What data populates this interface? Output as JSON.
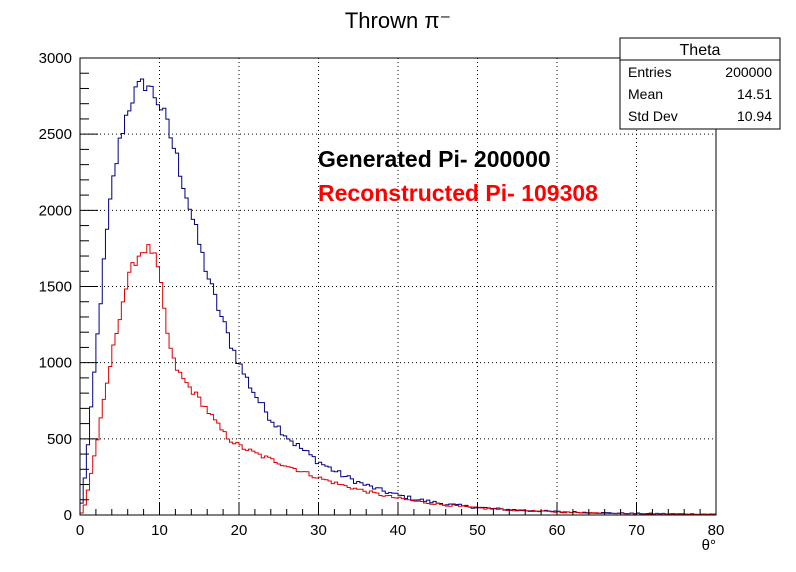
{
  "chart_data": {
    "type": "histogram",
    "title": "Thrown π⁻",
    "xlabel": "θ°",
    "ylabel": "",
    "xlim": [
      0,
      80
    ],
    "ylim": [
      0,
      3000
    ],
    "bin_width": 0.4,
    "x_ticks": [
      "0",
      "10",
      "20",
      "30",
      "40",
      "50",
      "60",
      "70",
      "80"
    ],
    "y_ticks": [
      "0",
      "500",
      "1000",
      "1500",
      "2000",
      "2500",
      "3000"
    ],
    "grid": true,
    "stats_box": {
      "title": "Theta",
      "rows": [
        {
          "label": "Entries",
          "value": "200000"
        },
        {
          "label": "Mean",
          "value": "14.51"
        },
        {
          "label": "Std Dev",
          "value": "10.94"
        }
      ]
    },
    "annotations": [
      {
        "text": "Generated Pi- 200000",
        "color": "#000000"
      },
      {
        "text": "Reconstructed Pi- 109308",
        "color": "#ff0000"
      }
    ],
    "series": [
      {
        "color": "#000080",
        "shape_points": [
          [
            0,
            0
          ],
          [
            0.4,
            150
          ],
          [
            0.8,
            350
          ],
          [
            1.2,
            560
          ],
          [
            1.6,
            800
          ],
          [
            2,
            1050
          ],
          [
            2.4,
            1300
          ],
          [
            2.8,
            1530
          ],
          [
            3.2,
            1760
          ],
          [
            3.6,
            1950
          ],
          [
            4,
            2130
          ],
          [
            4.4,
            2270
          ],
          [
            4.8,
            2380
          ],
          [
            5.2,
            2500
          ],
          [
            5.6,
            2580
          ],
          [
            6,
            2650
          ],
          [
            6.4,
            2720
          ],
          [
            6.8,
            2760
          ],
          [
            7.2,
            2790
          ],
          [
            7.6,
            2810
          ],
          [
            8,
            2830
          ],
          [
            8.4,
            2840
          ],
          [
            8.8,
            2800
          ],
          [
            9.2,
            2770
          ],
          [
            9.6,
            2740
          ],
          [
            10,
            2700
          ],
          [
            10.4,
            2650
          ],
          [
            10.8,
            2590
          ],
          [
            11.2,
            2520
          ],
          [
            11.6,
            2450
          ],
          [
            12,
            2380
          ],
          [
            12.4,
            2300
          ],
          [
            12.8,
            2220
          ],
          [
            13.2,
            2140
          ],
          [
            13.6,
            2060
          ],
          [
            14,
            1980
          ],
          [
            14.4,
            1900
          ],
          [
            14.8,
            1820
          ],
          [
            15.2,
            1740
          ],
          [
            15.6,
            1660
          ],
          [
            16,
            1590
          ],
          [
            16.4,
            1520
          ],
          [
            16.8,
            1450
          ],
          [
            17.2,
            1390
          ],
          [
            17.6,
            1330
          ],
          [
            18,
            1270
          ],
          [
            18.4,
            1210
          ],
          [
            18.8,
            1150
          ],
          [
            19.2,
            1100
          ],
          [
            19.6,
            1050
          ],
          [
            20,
            1000
          ],
          [
            20.4,
            955
          ],
          [
            20.8,
            910
          ],
          [
            21.2,
            870
          ],
          [
            21.6,
            830
          ],
          [
            22,
            795
          ],
          [
            22.4,
            760
          ],
          [
            22.8,
            725
          ],
          [
            23.2,
            695
          ],
          [
            23.6,
            665
          ],
          [
            24,
            635
          ],
          [
            25,
            575
          ],
          [
            26,
            520
          ],
          [
            27,
            470
          ],
          [
            28,
            430
          ],
          [
            29,
            390
          ],
          [
            30,
            350
          ],
          [
            31,
            320
          ],
          [
            32,
            290
          ],
          [
            33,
            262
          ],
          [
            34,
            238
          ],
          [
            35,
            215
          ],
          [
            36,
            195
          ],
          [
            37,
            177
          ],
          [
            38,
            160
          ],
          [
            39,
            145
          ],
          [
            40,
            130
          ],
          [
            42,
            106
          ],
          [
            44,
            88
          ],
          [
            46,
            72
          ],
          [
            48,
            60
          ],
          [
            50,
            50
          ],
          [
            52,
            42
          ],
          [
            54,
            35
          ],
          [
            56,
            30
          ],
          [
            58,
            26
          ],
          [
            60,
            22
          ],
          [
            62,
            19
          ],
          [
            64,
            16
          ],
          [
            66,
            14
          ],
          [
            68,
            12
          ],
          [
            70,
            10
          ],
          [
            72,
            9
          ],
          [
            74,
            8
          ],
          [
            76,
            7
          ],
          [
            78,
            6
          ],
          [
            80,
            5
          ]
        ],
        "jitter_amplitude": 45
      },
      {
        "color": "#dd0000",
        "shape_points": [
          [
            0,
            0
          ],
          [
            0.4,
            25
          ],
          [
            0.8,
            110
          ],
          [
            1.2,
            220
          ],
          [
            1.6,
            330
          ],
          [
            2,
            440
          ],
          [
            2.4,
            560
          ],
          [
            2.8,
            680
          ],
          [
            3.2,
            800
          ],
          [
            3.6,
            920
          ],
          [
            4,
            1040
          ],
          [
            4.4,
            1150
          ],
          [
            4.8,
            1260
          ],
          [
            5.2,
            1360
          ],
          [
            5.6,
            1450
          ],
          [
            6,
            1530
          ],
          [
            6.4,
            1600
          ],
          [
            6.8,
            1650
          ],
          [
            7.2,
            1690
          ],
          [
            7.6,
            1720
          ],
          [
            8,
            1740
          ],
          [
            8.4,
            1750
          ],
          [
            8.8,
            1745
          ],
          [
            9.2,
            1720
          ],
          [
            9.6,
            1660
          ],
          [
            10,
            1570
          ],
          [
            10.4,
            1420
          ],
          [
            10.8,
            1260
          ],
          [
            11.2,
            1130
          ],
          [
            11.6,
            1040
          ],
          [
            12,
            980
          ],
          [
            12.4,
            940
          ],
          [
            12.8,
            905
          ],
          [
            13.2,
            875
          ],
          [
            13.6,
            850
          ],
          [
            14,
            825
          ],
          [
            14.4,
            800
          ],
          [
            14.8,
            775
          ],
          [
            15.2,
            750
          ],
          [
            15.6,
            720
          ],
          [
            16,
            690
          ],
          [
            16.4,
            660
          ],
          [
            16.8,
            630
          ],
          [
            17.2,
            600
          ],
          [
            17.6,
            570
          ],
          [
            18,
            545
          ],
          [
            18.4,
            520
          ],
          [
            18.8,
            500
          ],
          [
            19.2,
            485
          ],
          [
            19.6,
            470
          ],
          [
            20,
            455
          ],
          [
            21,
            430
          ],
          [
            22,
            405
          ],
          [
            23,
            385
          ],
          [
            24,
            365
          ],
          [
            25,
            345
          ],
          [
            26,
            325
          ],
          [
            27,
            305
          ],
          [
            28,
            285
          ],
          [
            29,
            265
          ],
          [
            30,
            245
          ],
          [
            31,
            228
          ],
          [
            32,
            212
          ],
          [
            33,
            196
          ],
          [
            34,
            182
          ],
          [
            35,
            168
          ],
          [
            36,
            155
          ],
          [
            37,
            143
          ],
          [
            38,
            131
          ],
          [
            39,
            120
          ],
          [
            40,
            110
          ],
          [
            42,
            92
          ],
          [
            44,
            78
          ],
          [
            46,
            66
          ],
          [
            48,
            55
          ],
          [
            50,
            46
          ],
          [
            52,
            39
          ],
          [
            54,
            33
          ],
          [
            56,
            28
          ],
          [
            58,
            24
          ],
          [
            60,
            20
          ],
          [
            62,
            17
          ],
          [
            64,
            15
          ],
          [
            66,
            13
          ],
          [
            68,
            11
          ],
          [
            70,
            9
          ],
          [
            72,
            8
          ],
          [
            74,
            7
          ],
          [
            76,
            6
          ],
          [
            78,
            5
          ],
          [
            80,
            4
          ]
        ],
        "jitter_amplitude": 32
      }
    ]
  }
}
